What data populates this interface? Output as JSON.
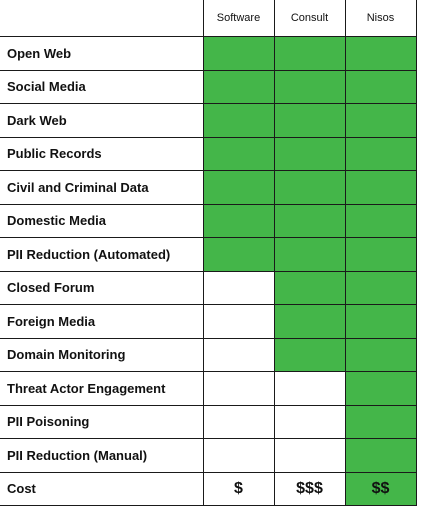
{
  "columns": [
    "Software",
    "Consult",
    "Nisos"
  ],
  "colors": {
    "filled": "#44b649",
    "empty": "#ffffff",
    "border": "#1a1a1a"
  },
  "rows": [
    {
      "label": "Open Web",
      "cells": [
        true,
        true,
        true
      ]
    },
    {
      "label": "Social Media",
      "cells": [
        true,
        true,
        true
      ]
    },
    {
      "label": "Dark Web",
      "cells": [
        true,
        true,
        true
      ]
    },
    {
      "label": "Public Records",
      "cells": [
        true,
        true,
        true
      ]
    },
    {
      "label": "Civil and Criminal Data",
      "cells": [
        true,
        true,
        true
      ]
    },
    {
      "label": "Domestic Media",
      "cells": [
        true,
        true,
        true
      ]
    },
    {
      "label": "PII Reduction (Automated)",
      "cells": [
        true,
        true,
        true
      ]
    },
    {
      "label": "Closed Forum",
      "cells": [
        false,
        true,
        true
      ]
    },
    {
      "label": "Foreign Media",
      "cells": [
        false,
        true,
        true
      ]
    },
    {
      "label": "Domain Monitoring",
      "cells": [
        false,
        true,
        true
      ]
    },
    {
      "label": "Threat Actor Engagement",
      "cells": [
        false,
        false,
        true
      ]
    },
    {
      "label": "PII Poisoning",
      "cells": [
        false,
        false,
        true
      ]
    },
    {
      "label": "PII Reduction (Manual)",
      "cells": [
        false,
        false,
        true
      ]
    }
  ],
  "cost": {
    "label": "Cost",
    "values": [
      "$",
      "$$$",
      "$$"
    ],
    "filled": [
      false,
      false,
      true
    ]
  }
}
